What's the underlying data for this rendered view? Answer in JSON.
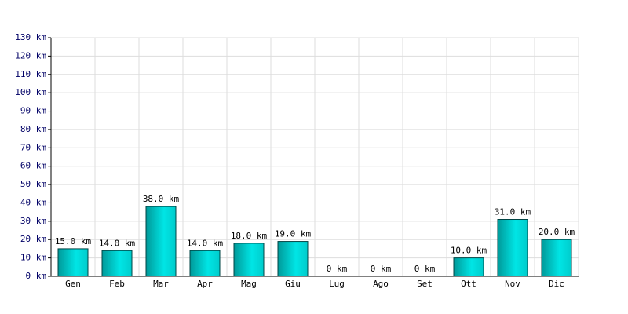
{
  "chart_data": {
    "type": "bar",
    "categories": [
      "Gen",
      "Feb",
      "Mar",
      "Apr",
      "Mag",
      "Giu",
      "Lug",
      "Ago",
      "Set",
      "Ott",
      "Nov",
      "Dic"
    ],
    "values": [
      15,
      14,
      38,
      14,
      18,
      19,
      0,
      0,
      0,
      10,
      31,
      20
    ],
    "value_labels": [
      "15.0 km",
      "14.0 km",
      "38.0 km",
      "14.0 km",
      "18.0 km",
      "19.0 km",
      "0 km",
      "0 km",
      "0 km",
      "10.0 km",
      "31.0 km",
      "20.0 km"
    ],
    "color": "#00e5e5",
    "ylim": [
      0,
      130
    ],
    "yticks": [
      {
        "value": 0,
        "label": "0 km"
      },
      {
        "value": 10,
        "label": "10 km"
      },
      {
        "value": 20,
        "label": "20 km"
      },
      {
        "value": 30,
        "label": "30 km"
      },
      {
        "value": 40,
        "label": "40 km"
      },
      {
        "value": 50,
        "label": "50 km"
      },
      {
        "value": 60,
        "label": "60 km"
      },
      {
        "value": 70,
        "label": "70 km"
      },
      {
        "value": 80,
        "label": "80 km"
      },
      {
        "value": 90,
        "label": "90 km"
      },
      {
        "value": 100,
        "label": "100 km"
      },
      {
        "value": 110,
        "label": "110 km"
      },
      {
        "value": 120,
        "label": "120 km"
      },
      {
        "value": 130,
        "label": "130 km"
      }
    ],
    "grid": true
  }
}
